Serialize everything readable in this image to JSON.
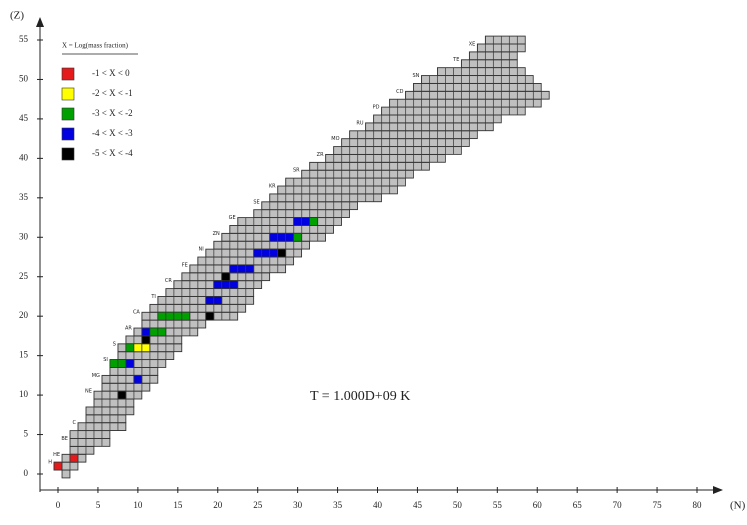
{
  "chart_data": {
    "type": "nuclide_chart",
    "x_label": "(N)",
    "y_label": "(Z)",
    "annotation": "T = 1.000D+09 K",
    "legend_title": "X = Log(mass fraction)",
    "legend": [
      {
        "label": "-1 < X < 0",
        "color": "#e41a1c"
      },
      {
        "label": "-2 < X < -1",
        "color": "#ffff00"
      },
      {
        "label": "-3 < X < -2",
        "color": "#00a000"
      },
      {
        "label": "-4 < X < -3",
        "color": "#0000e0"
      },
      {
        "label": "-5 < X < -4",
        "color": "#000000"
      }
    ],
    "xlim": [
      0,
      80
    ],
    "ylim": [
      0,
      55
    ],
    "xticks": [
      0,
      5,
      10,
      15,
      20,
      25,
      30,
      35,
      40,
      45,
      50,
      55,
      60,
      65,
      70,
      75,
      80
    ],
    "yticks": [
      0,
      5,
      10,
      15,
      20,
      25,
      30,
      35,
      40,
      45,
      50,
      55
    ],
    "cell_color": "#c0c0c0",
    "rows": [
      {
        "z": 0,
        "n_min": 1,
        "n_max": 1
      },
      {
        "z": 1,
        "n_min": 0,
        "n_max": 2
      },
      {
        "z": 2,
        "n_min": 1,
        "n_max": 3
      },
      {
        "z": 3,
        "n_min": 2,
        "n_max": 4
      },
      {
        "z": 4,
        "n_min": 2,
        "n_max": 6
      },
      {
        "z": 5,
        "n_min": 2,
        "n_max": 6
      },
      {
        "z": 6,
        "n_min": 3,
        "n_max": 8
      },
      {
        "z": 7,
        "n_min": 4,
        "n_max": 8
      },
      {
        "z": 8,
        "n_min": 4,
        "n_max": 9
      },
      {
        "z": 9,
        "n_min": 5,
        "n_max": 9
      },
      {
        "z": 10,
        "n_min": 5,
        "n_max": 10
      },
      {
        "z": 11,
        "n_min": 6,
        "n_max": 11
      },
      {
        "z": 12,
        "n_min": 6,
        "n_max": 12
      },
      {
        "z": 13,
        "n_min": 7,
        "n_max": 12
      },
      {
        "z": 14,
        "n_min": 7,
        "n_max": 13
      },
      {
        "z": 15,
        "n_min": 8,
        "n_max": 14
      },
      {
        "z": 16,
        "n_min": 8,
        "n_max": 15
      },
      {
        "z": 17,
        "n_min": 9,
        "n_max": 15
      },
      {
        "z": 18,
        "n_min": 10,
        "n_max": 17
      },
      {
        "z": 19,
        "n_min": 11,
        "n_max": 18
      },
      {
        "z": 20,
        "n_min": 11,
        "n_max": 22
      },
      {
        "z": 21,
        "n_min": 12,
        "n_max": 23
      },
      {
        "z": 22,
        "n_min": 13,
        "n_max": 24
      },
      {
        "z": 23,
        "n_min": 14,
        "n_max": 24
      },
      {
        "z": 24,
        "n_min": 15,
        "n_max": 25
      },
      {
        "z": 25,
        "n_min": 16,
        "n_max": 26
      },
      {
        "z": 26,
        "n_min": 17,
        "n_max": 28
      },
      {
        "z": 27,
        "n_min": 18,
        "n_max": 29
      },
      {
        "z": 28,
        "n_min": 19,
        "n_max": 30
      },
      {
        "z": 29,
        "n_min": 20,
        "n_max": 31
      },
      {
        "z": 30,
        "n_min": 21,
        "n_max": 33
      },
      {
        "z": 31,
        "n_min": 22,
        "n_max": 34
      },
      {
        "z": 32,
        "n_min": 23,
        "n_max": 35
      },
      {
        "z": 33,
        "n_min": 25,
        "n_max": 36
      },
      {
        "z": 34,
        "n_min": 26,
        "n_max": 37
      },
      {
        "z": 35,
        "n_min": 27,
        "n_max": 40
      },
      {
        "z": 36,
        "n_min": 28,
        "n_max": 42
      },
      {
        "z": 37,
        "n_min": 29,
        "n_max": 43
      },
      {
        "z": 38,
        "n_min": 31,
        "n_max": 44
      },
      {
        "z": 39,
        "n_min": 32,
        "n_max": 46
      },
      {
        "z": 40,
        "n_min": 34,
        "n_max": 48
      },
      {
        "z": 41,
        "n_min": 35,
        "n_max": 50
      },
      {
        "z": 42,
        "n_min": 36,
        "n_max": 51
      },
      {
        "z": 43,
        "n_min": 37,
        "n_max": 52
      },
      {
        "z": 44,
        "n_min": 39,
        "n_max": 54
      },
      {
        "z": 45,
        "n_min": 40,
        "n_max": 55
      },
      {
        "z": 46,
        "n_min": 41,
        "n_max": 58
      },
      {
        "z": 47,
        "n_min": 42,
        "n_max": 60
      },
      {
        "z": 48,
        "n_min": 44,
        "n_max": 61
      },
      {
        "z": 49,
        "n_min": 45,
        "n_max": 60
      },
      {
        "z": 50,
        "n_min": 46,
        "n_max": 59
      },
      {
        "z": 51,
        "n_min": 48,
        "n_max": 58
      },
      {
        "z": 52,
        "n_min": 51,
        "n_max": 57
      },
      {
        "z": 53,
        "n_min": 52,
        "n_max": 57
      },
      {
        "z": 54,
        "n_min": 53,
        "n_max": 58
      },
      {
        "z": 55,
        "n_min": 54,
        "n_max": 58
      }
    ],
    "cells": [
      {
        "n": 0,
        "z": 1,
        "class": 0
      },
      {
        "n": 2,
        "z": 2,
        "class": 0
      },
      {
        "n": 8,
        "z": 10,
        "class": 4
      },
      {
        "n": 10,
        "z": 12,
        "class": 3
      },
      {
        "n": 7,
        "z": 14,
        "class": 2
      },
      {
        "n": 8,
        "z": 14,
        "class": 2
      },
      {
        "n": 9,
        "z": 14,
        "class": 3
      },
      {
        "n": 9,
        "z": 16,
        "class": 2
      },
      {
        "n": 10,
        "z": 16,
        "class": 1
      },
      {
        "n": 11,
        "z": 16,
        "class": 1
      },
      {
        "n": 11,
        "z": 17,
        "class": 4
      },
      {
        "n": 11,
        "z": 18,
        "class": 3
      },
      {
        "n": 12,
        "z": 18,
        "class": 2
      },
      {
        "n": 13,
        "z": 18,
        "class": 2
      },
      {
        "n": 13,
        "z": 20,
        "class": 2
      },
      {
        "n": 14,
        "z": 20,
        "class": 2
      },
      {
        "n": 15,
        "z": 20,
        "class": 2
      },
      {
        "n": 16,
        "z": 20,
        "class": 2
      },
      {
        "n": 19,
        "z": 20,
        "class": 4
      },
      {
        "n": 19,
        "z": 22,
        "class": 3
      },
      {
        "n": 20,
        "z": 22,
        "class": 3
      },
      {
        "n": 20,
        "z": 24,
        "class": 3
      },
      {
        "n": 21,
        "z": 24,
        "class": 3
      },
      {
        "n": 22,
        "z": 24,
        "class": 3
      },
      {
        "n": 21,
        "z": 25,
        "class": 4
      },
      {
        "n": 22,
        "z": 26,
        "class": 3
      },
      {
        "n": 23,
        "z": 26,
        "class": 3
      },
      {
        "n": 24,
        "z": 26,
        "class": 3
      },
      {
        "n": 25,
        "z": 28,
        "class": 3
      },
      {
        "n": 26,
        "z": 28,
        "class": 3
      },
      {
        "n": 27,
        "z": 28,
        "class": 3
      },
      {
        "n": 28,
        "z": 28,
        "class": 4
      },
      {
        "n": 27,
        "z": 30,
        "class": 3
      },
      {
        "n": 28,
        "z": 30,
        "class": 3
      },
      {
        "n": 29,
        "z": 30,
        "class": 3
      },
      {
        "n": 30,
        "z": 30,
        "class": 2
      },
      {
        "n": 30,
        "z": 32,
        "class": 3
      },
      {
        "n": 31,
        "z": 32,
        "class": 3
      },
      {
        "n": 32,
        "z": 32,
        "class": 2
      }
    ],
    "element_labels": [
      {
        "z": 1,
        "label": "H"
      },
      {
        "z": 2,
        "label": "HE"
      },
      {
        "z": 4,
        "label": "BE"
      },
      {
        "z": 6,
        "label": "C"
      },
      {
        "z": 10,
        "label": "NE"
      },
      {
        "z": 12,
        "label": "MG"
      },
      {
        "z": 14,
        "label": "SI"
      },
      {
        "z": 16,
        "label": "S"
      },
      {
        "z": 18,
        "label": "AR"
      },
      {
        "z": 20,
        "label": "CA"
      },
      {
        "z": 22,
        "label": "TI"
      },
      {
        "z": 24,
        "label": "CR"
      },
      {
        "z": 26,
        "label": "FE"
      },
      {
        "z": 28,
        "label": "NI"
      },
      {
        "z": 30,
        "label": "ZN"
      },
      {
        "z": 32,
        "label": "GE"
      },
      {
        "z": 34,
        "label": "SE"
      },
      {
        "z": 36,
        "label": "KR"
      },
      {
        "z": 38,
        "label": "SR"
      },
      {
        "z": 40,
        "label": "ZR"
      },
      {
        "z": 42,
        "label": "MO"
      },
      {
        "z": 44,
        "label": "RU"
      },
      {
        "z": 46,
        "label": "PD"
      },
      {
        "z": 48,
        "label": "CD"
      },
      {
        "z": 50,
        "label": "SN"
      },
      {
        "z": 52,
        "label": "TE"
      },
      {
        "z": 54,
        "label": "XE"
      }
    ]
  }
}
